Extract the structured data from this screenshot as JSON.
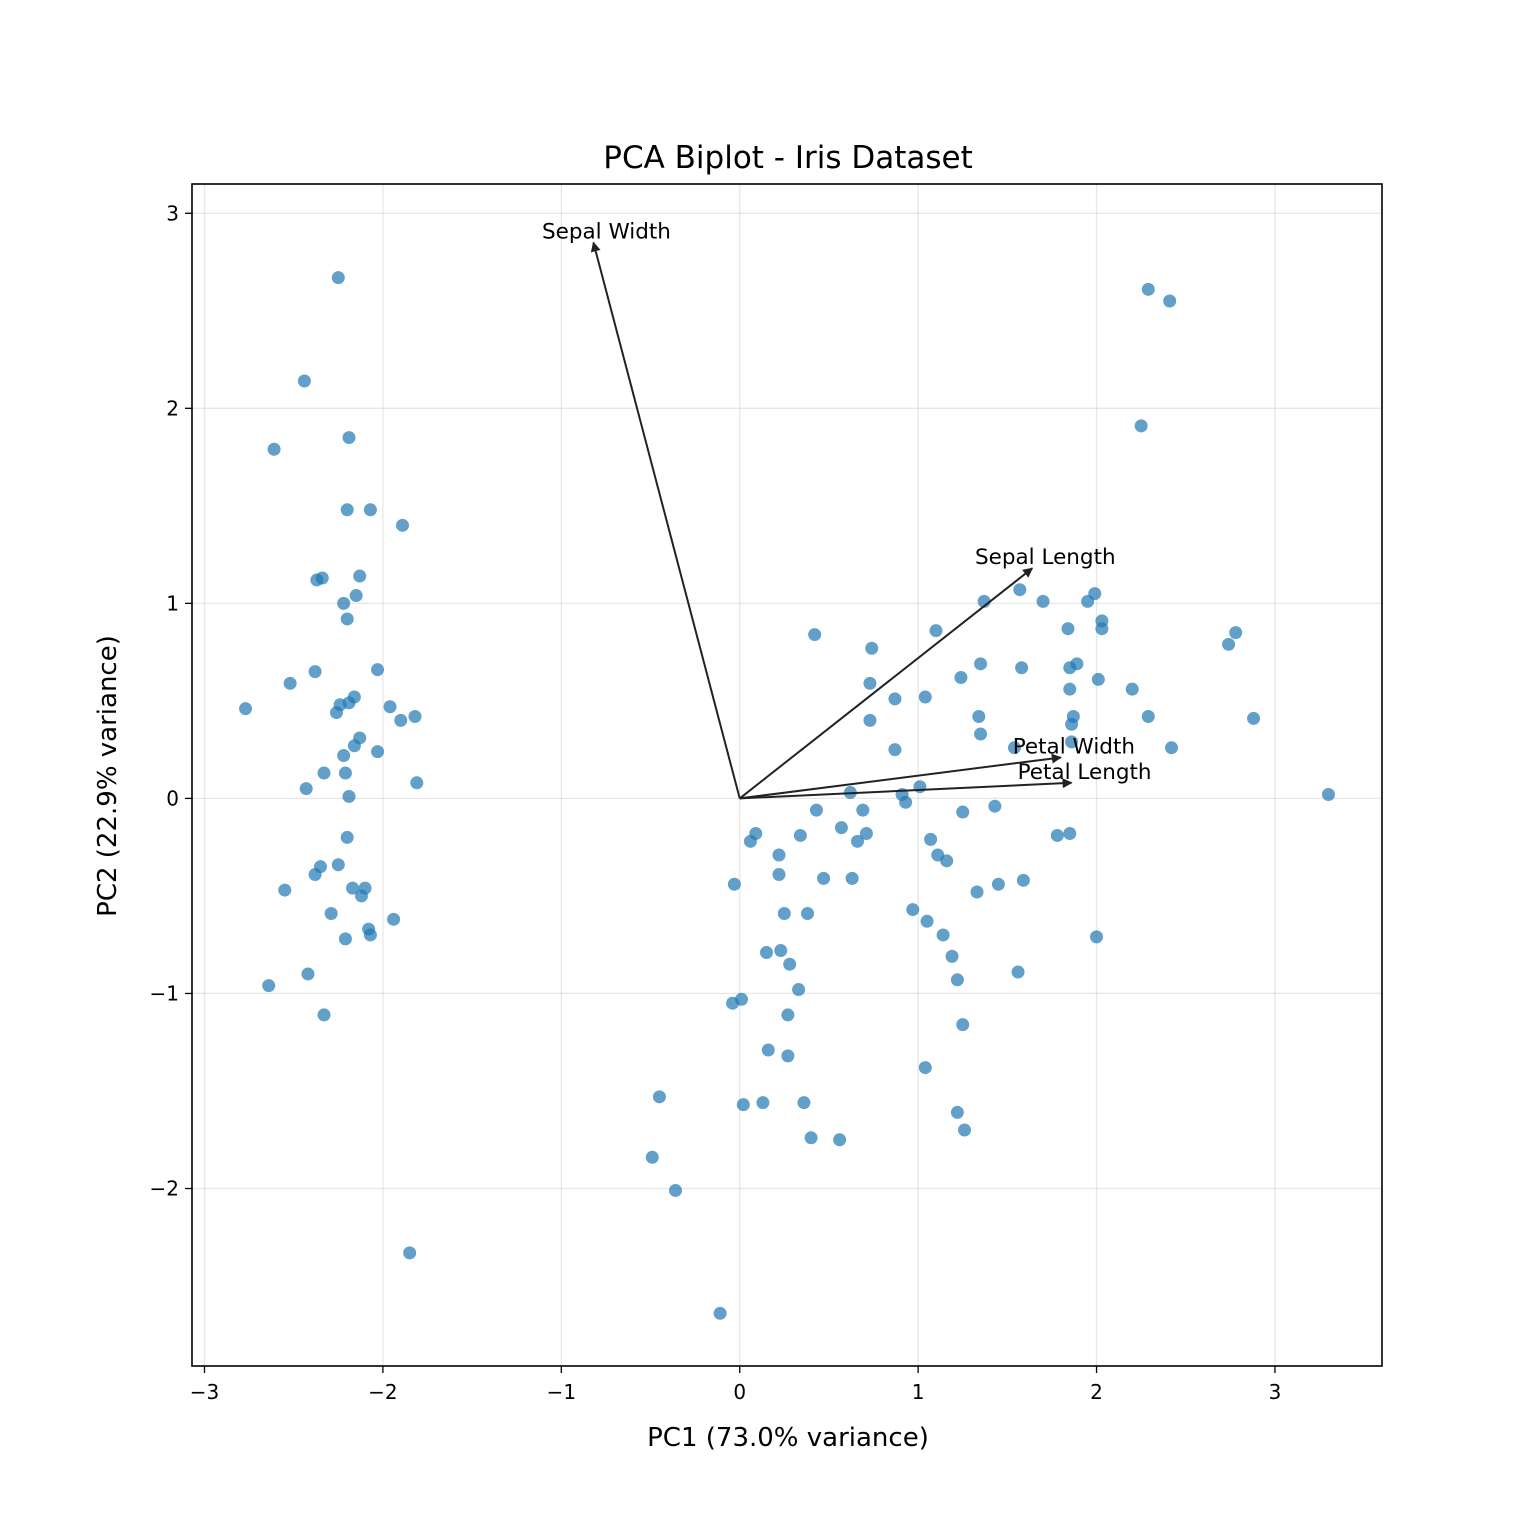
{
  "chart_data": {
    "type": "scatter",
    "title": "PCA Biplot - Iris Dataset",
    "xlabel": "PC1 (73.0% variance)",
    "ylabel": "PC2 (22.9% variance)",
    "xlim": [
      -3.07,
      3.6
    ],
    "ylim": [
      -2.91,
      3.15
    ],
    "xticks": [
      -3,
      -2,
      -1,
      0,
      1,
      2,
      3
    ],
    "yticks": [
      -2,
      -1,
      0,
      1,
      2,
      3
    ],
    "grid": true,
    "point_color": "#1f77b4",
    "arrow_color": "#222222",
    "points": [
      [
        -2.25,
        2.67
      ],
      [
        -2.44,
        2.14
      ],
      [
        -2.61,
        1.79
      ],
      [
        -2.19,
        1.85
      ],
      [
        -2.2,
        1.48
      ],
      [
        -2.07,
        1.48
      ],
      [
        -1.89,
        1.4
      ],
      [
        -2.37,
        1.12
      ],
      [
        -2.34,
        1.13
      ],
      [
        -2.13,
        1.14
      ],
      [
        -2.15,
        1.04
      ],
      [
        -2.22,
        1.0
      ],
      [
        -2.2,
        0.92
      ],
      [
        -2.03,
        0.66
      ],
      [
        -2.38,
        0.65
      ],
      [
        -2.52,
        0.59
      ],
      [
        -2.77,
        0.46
      ],
      [
        -2.16,
        0.52
      ],
      [
        -2.24,
        0.48
      ],
      [
        -2.19,
        0.49
      ],
      [
        -2.26,
        0.44
      ],
      [
        -1.96,
        0.47
      ],
      [
        -1.9,
        0.4
      ],
      [
        -1.82,
        0.42
      ],
      [
        -2.13,
        0.31
      ],
      [
        -2.16,
        0.27
      ],
      [
        -2.03,
        0.24
      ],
      [
        -2.22,
        0.22
      ],
      [
        -2.33,
        0.13
      ],
      [
        -2.21,
        0.13
      ],
      [
        -1.81,
        0.08
      ],
      [
        -2.43,
        0.05
      ],
      [
        -2.19,
        0.01
      ],
      [
        -2.2,
        -0.2
      ],
      [
        -2.25,
        -0.34
      ],
      [
        -2.35,
        -0.35
      ],
      [
        -2.38,
        -0.39
      ],
      [
        -2.17,
        -0.46
      ],
      [
        -2.1,
        -0.46
      ],
      [
        -2.12,
        -0.5
      ],
      [
        -2.55,
        -0.47
      ],
      [
        -2.29,
        -0.59
      ],
      [
        -1.94,
        -0.62
      ],
      [
        -2.08,
        -0.67
      ],
      [
        -2.07,
        -0.7
      ],
      [
        -2.21,
        -0.72
      ],
      [
        -2.42,
        -0.9
      ],
      [
        -2.64,
        -0.96
      ],
      [
        -2.33,
        -1.11
      ],
      [
        -1.85,
        -2.33
      ],
      [
        0.42,
        0.84
      ],
      [
        0.74,
        0.77
      ],
      [
        0.73,
        0.59
      ],
      [
        0.87,
        0.51
      ],
      [
        0.73,
        0.4
      ],
      [
        0.87,
        0.25
      ],
      [
        1.04,
        0.52
      ],
      [
        1.1,
        0.86
      ],
      [
        1.24,
        0.62
      ],
      [
        1.35,
        0.69
      ],
      [
        1.34,
        0.42
      ],
      [
        1.35,
        0.33
      ],
      [
        1.37,
        1.01
      ],
      [
        1.57,
        1.07
      ],
      [
        1.58,
        0.67
      ],
      [
        1.7,
        1.01
      ],
      [
        1.84,
        0.87
      ],
      [
        1.85,
        0.67
      ],
      [
        1.89,
        0.69
      ],
      [
        1.85,
        0.56
      ],
      [
        1.87,
        0.42
      ],
      [
        1.86,
        0.38
      ],
      [
        1.86,
        0.29
      ],
      [
        1.54,
        0.26
      ],
      [
        1.95,
        1.01
      ],
      [
        1.99,
        1.05
      ],
      [
        2.03,
        0.91
      ],
      [
        2.03,
        0.87
      ],
      [
        2.01,
        0.61
      ],
      [
        2.2,
        0.56
      ],
      [
        2.29,
        2.61
      ],
      [
        2.41,
        2.55
      ],
      [
        2.25,
        1.91
      ],
      [
        2.78,
        0.85
      ],
      [
        2.74,
        0.79
      ],
      [
        2.88,
        0.41
      ],
      [
        2.29,
        0.42
      ],
      [
        2.42,
        0.26
      ],
      [
        3.3,
        0.02
      ],
      [
        0.62,
        0.03
      ],
      [
        0.43,
        -0.06
      ],
      [
        0.69,
        -0.06
      ],
      [
        0.91,
        0.02
      ],
      [
        0.93,
        -0.02
      ],
      [
        1.01,
        0.06
      ],
      [
        0.09,
        -0.18
      ],
      [
        0.06,
        -0.22
      ],
      [
        0.34,
        -0.19
      ],
      [
        0.57,
        -0.15
      ],
      [
        0.71,
        -0.18
      ],
      [
        0.66,
        -0.22
      ],
      [
        0.22,
        -0.29
      ],
      [
        0.22,
        -0.39
      ],
      [
        -0.03,
        -0.44
      ],
      [
        0.47,
        -0.41
      ],
      [
        0.63,
        -0.41
      ],
      [
        1.07,
        -0.21
      ],
      [
        1.11,
        -0.29
      ],
      [
        1.16,
        -0.32
      ],
      [
        1.25,
        -0.07
      ],
      [
        1.43,
        -0.04
      ],
      [
        1.33,
        -0.48
      ],
      [
        1.45,
        -0.44
      ],
      [
        1.59,
        -0.42
      ],
      [
        1.78,
        -0.19
      ],
      [
        1.85,
        -0.18
      ],
      [
        0.25,
        -0.59
      ],
      [
        0.38,
        -0.59
      ],
      [
        0.97,
        -0.57
      ],
      [
        1.05,
        -0.63
      ],
      [
        1.14,
        -0.7
      ],
      [
        1.19,
        -0.81
      ],
      [
        1.22,
        -0.93
      ],
      [
        1.56,
        -0.89
      ],
      [
        2.0,
        -0.71
      ],
      [
        0.15,
        -0.79
      ],
      [
        0.23,
        -0.78
      ],
      [
        0.28,
        -0.85
      ],
      [
        0.33,
        -0.98
      ],
      [
        -0.04,
        -1.05
      ],
      [
        0.01,
        -1.03
      ],
      [
        0.27,
        -1.11
      ],
      [
        0.16,
        -1.29
      ],
      [
        0.27,
        -1.32
      ],
      [
        1.25,
        -1.16
      ],
      [
        1.04,
        -1.38
      ],
      [
        1.22,
        -1.61
      ],
      [
        1.26,
        -1.7
      ],
      [
        -0.45,
        -1.53
      ],
      [
        0.02,
        -1.57
      ],
      [
        0.13,
        -1.56
      ],
      [
        0.36,
        -1.56
      ],
      [
        0.4,
        -1.74
      ],
      [
        0.56,
        -1.75
      ],
      [
        -0.49,
        -1.84
      ],
      [
        -0.36,
        -2.01
      ],
      [
        -0.11,
        -2.64
      ]
    ],
    "loadings": [
      {
        "name": "Sepal Length",
        "x": 1.64,
        "y": 1.18
      },
      {
        "name": "Sepal Width",
        "x": -0.82,
        "y": 2.85
      },
      {
        "name": "Petal Length",
        "x": 1.86,
        "y": 0.08
      },
      {
        "name": "Petal Width",
        "x": 1.8,
        "y": 0.21
      }
    ]
  }
}
